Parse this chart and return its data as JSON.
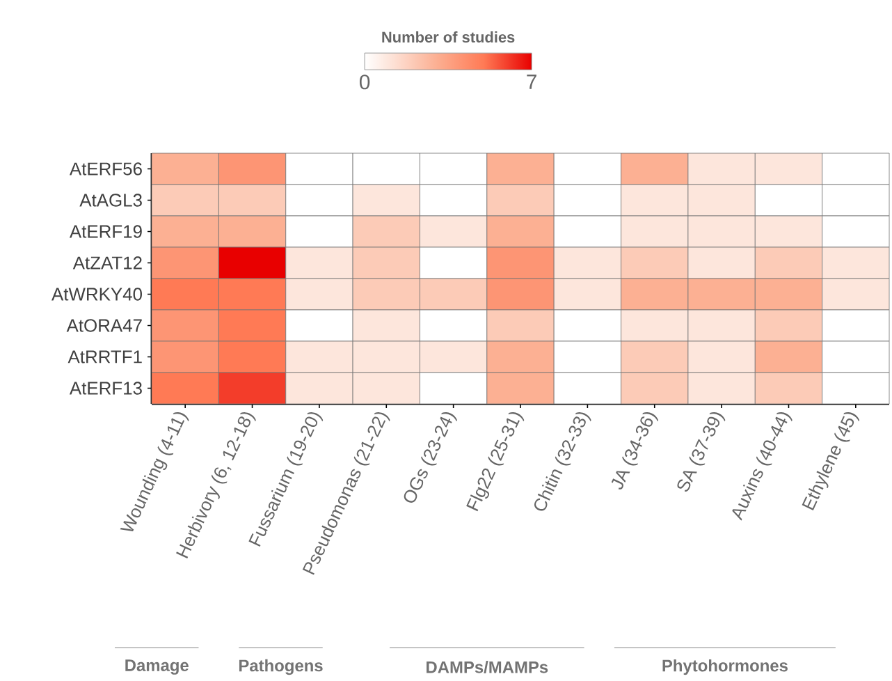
{
  "chart_data": {
    "type": "heatmap",
    "clabel": "Number of studies",
    "clim": [
      0,
      7
    ],
    "cticks": [
      0,
      7
    ],
    "categories": [
      "Wounding (4-11)",
      "Herbivory (6, 12-18)",
      "Fussarium (19-20)",
      "Pseudomonas (21-22)",
      "OGs (23-24)",
      "Flg22 (25-31)",
      "Chitin (32-33)",
      "JA (34-36)",
      "SA (37-39)",
      "Auxins (40-44)",
      "Ethylene (45)"
    ],
    "y_categories": [
      "AtERF56",
      "AtAGL3",
      "AtERF19",
      "AtZAT12",
      "AtWRKY40",
      "AtORA47",
      "AtRRTF1",
      "AtERF13"
    ],
    "cells": [
      [
        3,
        4,
        0,
        0,
        0,
        3,
        0,
        3,
        1,
        1,
        0
      ],
      [
        2,
        2,
        0,
        1,
        0,
        2,
        0,
        1,
        1,
        0,
        0
      ],
      [
        3,
        3,
        0,
        2,
        1,
        3,
        0,
        1,
        1,
        1,
        0
      ],
      [
        4,
        7,
        1,
        2,
        0,
        4,
        1,
        2,
        1,
        2,
        1
      ],
      [
        5,
        5,
        1,
        2,
        2,
        4,
        1,
        3,
        3,
        3,
        1
      ],
      [
        4,
        5,
        0,
        1,
        0,
        2,
        0,
        1,
        1,
        2,
        0
      ],
      [
        4,
        5,
        1,
        1,
        1,
        3,
        0,
        2,
        1,
        3,
        0
      ],
      [
        5,
        6,
        1,
        1,
        0,
        3,
        0,
        2,
        1,
        2,
        0
      ]
    ],
    "annotations": [
      "Damage",
      "Pathogens",
      "DAMPs/MAMPs",
      "Phytohormones"
    ]
  }
}
